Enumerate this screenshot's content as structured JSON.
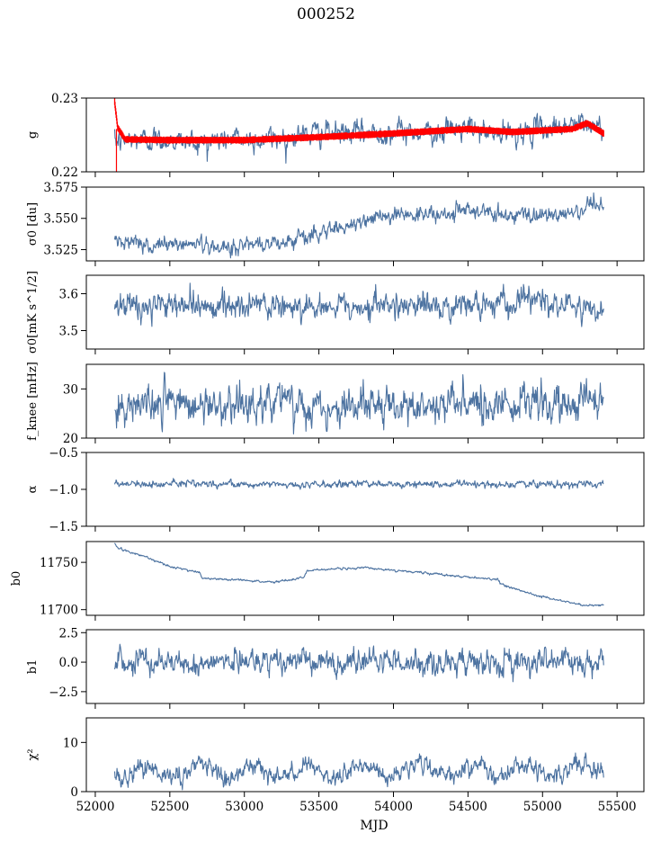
{
  "figure": {
    "title": "000252",
    "xlabel": "MJD"
  },
  "colors": {
    "line": "#4c72a0",
    "fit": "#ff0000",
    "axis": "#000000"
  },
  "chart_data": {
    "type": "line",
    "title": "000252",
    "xlabel": "MJD",
    "xlim": [
      51940,
      55680
    ],
    "xticks": [
      52000,
      52500,
      53000,
      53500,
      54000,
      54500,
      55000,
      55500
    ],
    "xtick_labels": [
      "52000",
      "52500",
      "53000",
      "53500",
      "54000",
      "54500",
      "55000",
      "55500"
    ],
    "x_start": 52130,
    "x_end": 55410,
    "grid": false,
    "panels": [
      {
        "id": "g",
        "ylabel": "g",
        "ylim": [
          0.22,
          0.23
        ],
        "yticks": [
          0.22,
          0.23
        ],
        "ytick_labels": [
          "0.22",
          "0.23"
        ],
        "series": [
          {
            "name": "g",
            "color": "#4c72a0",
            "x": [
              52130,
              52300,
              52500,
              52700,
              52900,
              53100,
              53300,
              53500,
              53700,
              53900,
              54100,
              54300,
              54500,
              54700,
              54900,
              55100,
              55250,
              55410
            ],
            "values": [
              0.224,
              0.2244,
              0.2243,
              0.224,
              0.2245,
              0.2243,
              0.2248,
              0.2253,
              0.2252,
              0.2253,
              0.2255,
              0.2255,
              0.2258,
              0.225,
              0.2254,
              0.2262,
              0.2265,
              0.226
            ],
            "noise": 0.0008
          },
          {
            "name": "g fit",
            "color": "#ff0000",
            "x": [
              52130,
              52150,
              52200,
              52500,
              53000,
              53500,
              54000,
              54500,
              54800,
              55000,
              55200,
              55300,
              55410
            ],
            "values": [
              0.2295,
              0.226,
              0.2244,
              0.2243,
              0.2243,
              0.2247,
              0.2252,
              0.2258,
              0.2254,
              0.2256,
              0.2258,
              0.2266,
              0.2252
            ],
            "band": 0.0004
          }
        ]
      },
      {
        "id": "sigma0_du",
        "ylabel": "σ0 [du]",
        "ylim": [
          3.516,
          3.575
        ],
        "yticks": [
          3.525,
          3.55,
          3.575
        ],
        "ytick_labels": [
          "3.525",
          "3.550",
          "3.575"
        ],
        "series": [
          {
            "name": "sigma0_du",
            "color": "#4c72a0",
            "x": [
              52130,
              52300,
              52500,
              52700,
              52900,
              53100,
              53300,
              53500,
              53700,
              53900,
              54100,
              54300,
              54500,
              54700,
              54900,
              55100,
              55300,
              55410
            ],
            "values": [
              3.534,
              3.53,
              3.529,
              3.53,
              3.526,
              3.53,
              3.532,
              3.538,
              3.545,
              3.552,
              3.553,
              3.553,
              3.556,
              3.553,
              3.552,
              3.553,
              3.557,
              3.558
            ],
            "noise": 0.0035
          }
        ]
      },
      {
        "id": "sigma0_mk",
        "ylabel": "σ0[mK s^1/2]",
        "ylim": [
          3.45,
          3.65
        ],
        "yticks": [
          3.5,
          3.6
        ],
        "ytick_labels": [
          "3.5",
          "3.6"
        ],
        "series": [
          {
            "name": "sigma0_mk",
            "color": "#4c72a0",
            "x": [
              52130,
              52400,
              52700,
              53000,
              53300,
              53600,
              53900,
              54200,
              54500,
              54800,
              54900,
              55100,
              55300,
              55410
            ],
            "values": [
              3.565,
              3.568,
              3.565,
              3.566,
              3.567,
              3.566,
              3.566,
              3.568,
              3.566,
              3.57,
              3.595,
              3.562,
              3.56,
              3.56
            ],
            "noise": 0.018
          }
        ]
      },
      {
        "id": "fknee",
        "ylabel": "f_knee [mHz]",
        "ylim": [
          20,
          35
        ],
        "yticks": [
          20,
          30
        ],
        "ytick_labels": [
          "20",
          "30"
        ],
        "series": [
          {
            "name": "fknee",
            "color": "#4c72a0",
            "x": [
              52130,
              52500,
              53000,
              53500,
              54000,
              54500,
              55000,
              55410
            ],
            "values": [
              26.5,
              27.0,
              26.8,
              26.6,
              26.5,
              26.8,
              27.0,
              27.2
            ],
            "noise": 2.0
          }
        ]
      },
      {
        "id": "alpha",
        "ylabel": "α",
        "ylim": [
          -1.5,
          -0.5
        ],
        "yticks": [
          -1.5,
          -1.0,
          -0.5
        ],
        "ytick_labels": [
          "−1.5",
          "−1.0",
          "−0.5"
        ],
        "series": [
          {
            "name": "alpha",
            "color": "#4c72a0",
            "x": [
              52130,
              55410
            ],
            "values": [
              -0.93,
              -0.93
            ],
            "noise": 0.025
          }
        ]
      },
      {
        "id": "b0",
        "ylabel": "b0",
        "ylim": [
          11694,
          11772
        ],
        "yticks": [
          11700,
          11750
        ],
        "ytick_labels": [
          "11700",
          "11750"
        ],
        "series": [
          {
            "name": "b0",
            "color": "#4c72a0",
            "x": [
              52130,
              52150,
              52300,
              52500,
              52700,
              52720,
              53000,
              53200,
              53400,
              53420,
              53600,
              53800,
              54000,
              54200,
              54450,
              54700,
              54720,
              54900,
              55100,
              55300,
              55410
            ],
            "values": [
              11769,
              11765,
              11758,
              11746,
              11739,
              11733,
              11731,
              11729,
              11734,
              11741,
              11743,
              11744,
              11742,
              11739,
              11735,
              11732,
              11727,
              11718,
              11710,
              11704,
              11705
            ],
            "noise": 0.6
          }
        ]
      },
      {
        "id": "b1",
        "ylabel": "b1",
        "ylim": [
          -3.5,
          2.75
        ],
        "yticks": [
          -2.5,
          0.0,
          2.5
        ],
        "ytick_labels": [
          "−2.5",
          "0.0",
          "2.5"
        ],
        "series": [
          {
            "name": "b1",
            "color": "#4c72a0",
            "x": [
              52130,
              55410
            ],
            "values": [
              0.0,
              0.0
            ],
            "noise": 0.55
          }
        ]
      },
      {
        "id": "chi2",
        "ylabel": "χ²",
        "ylim": [
          0,
          15
        ],
        "yticks": [
          0,
          10
        ],
        "ytick_labels": [
          "0",
          "10"
        ],
        "series": [
          {
            "name": "chi2",
            "color": "#4c72a0",
            "x": [
              52130,
              55410
            ],
            "values": [
              4.0,
              4.5
            ],
            "seasonal_amplitude": 1.5,
            "seasonal_period_days": 365,
            "noise": 1.0
          }
        ]
      }
    ]
  }
}
